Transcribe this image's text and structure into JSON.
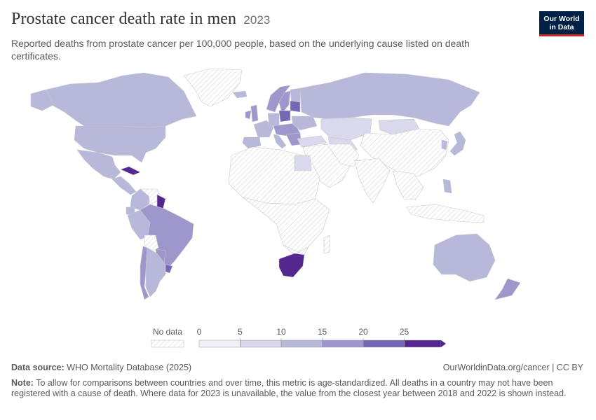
{
  "header": {
    "title": "Prostate cancer death rate in men",
    "year": "2023",
    "subtitle": "Reported deaths from prostate cancer per 100,000 people, based on the underlying cause listed on death certificates."
  },
  "logo": {
    "line1": "Our World",
    "line2": "in Data"
  },
  "legend": {
    "no_data_label": "No data",
    "ticks": [
      "0",
      "5",
      "10",
      "15",
      "20",
      "25"
    ],
    "colors": [
      "#f1f0f7",
      "#d9d8ec",
      "#b8b8db",
      "#9d97cc",
      "#7468b4",
      "#54278f"
    ]
  },
  "footer": {
    "source_label": "Data source:",
    "source_text": "WHO Mortality Database (2025)",
    "link": "OurWorldinData.org/cancer | CC BY",
    "note_label": "Note:",
    "note_text": "To allow for comparisons between countries and over time, this metric is age-standardized. All deaths in a country may not have been registered with a cause of death. Where data for 2023 is unavailable, the value from the closest year between 2018 and 2022 is shown instead."
  },
  "map_colors": {
    "no_data": "#f7f7f7",
    "border": "#c9c9c9",
    "low": "#d9d8ec",
    "mid": "#b8b8db",
    "high": "#9d97cc",
    "higher": "#7468b4",
    "top": "#54278f"
  }
}
